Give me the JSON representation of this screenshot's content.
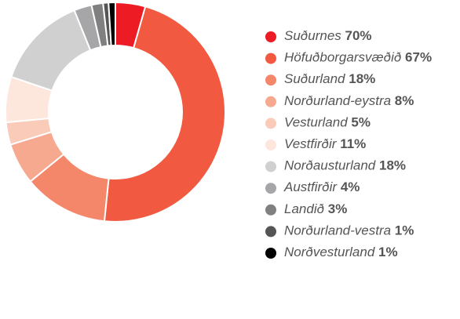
{
  "chart_data": {
    "type": "donut",
    "categories": [
      "Suðurnes",
      "Höfuðborgarsvæðið",
      "Suðurland",
      "Norðurland-eystra",
      "Vesturland",
      "Vestfirðir",
      "Norðausturland",
      "Austfirðir",
      "Landið",
      "Norðurland-vestra",
      "Norðvesturland"
    ],
    "values": [
      4.4,
      47.2,
      12.5,
      6.1,
      3.3,
      6.7,
      13.7,
      2.6,
      1.7,
      0.8,
      1.0
    ],
    "legend_labels": [
      "70%",
      "67%",
      "18%",
      "8%",
      "5%",
      "11%",
      "18%",
      "4%",
      "3%",
      "1%",
      "1%"
    ],
    "colors": [
      "#ed1c24",
      "#f15a40",
      "#f4876a",
      "#f7a98f",
      "#facbb8",
      "#fde6dc",
      "#d0d0d0",
      "#a6a6a9",
      "#808080",
      "#555555",
      "#000000"
    ]
  }
}
